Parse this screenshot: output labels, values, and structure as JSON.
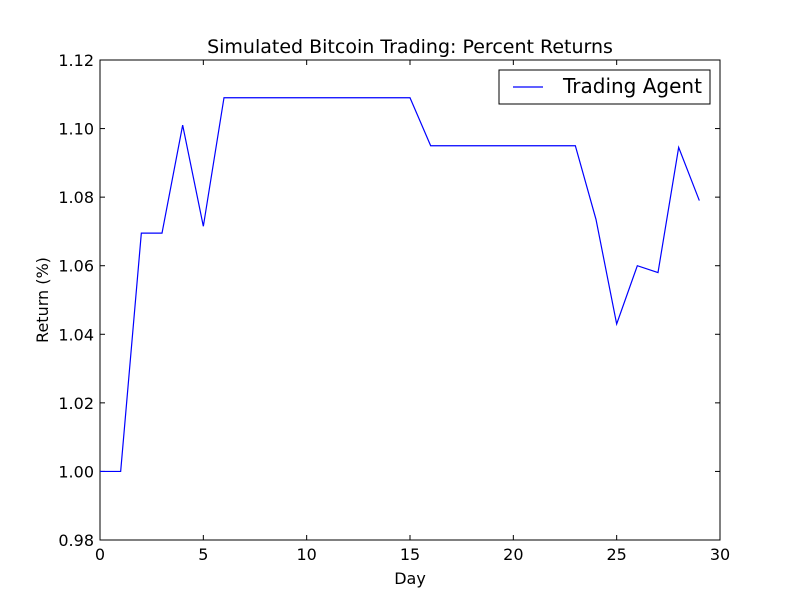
{
  "chart_data": {
    "type": "line",
    "title": "Simulated Bitcoin Trading: Percent Returns",
    "xlabel": "Day",
    "ylabel": "Return (%)",
    "xlim": [
      0,
      30
    ],
    "ylim": [
      0.98,
      1.12
    ],
    "xticks": [
      "0",
      "5",
      "10",
      "15",
      "20",
      "25",
      "30"
    ],
    "yticks": [
      "0.98",
      "1.00",
      "1.02",
      "1.04",
      "1.06",
      "1.08",
      "1.10",
      "1.12"
    ],
    "grid": false,
    "legend_position": "top-right",
    "series": [
      {
        "name": "Trading Agent",
        "color": "#0000ff",
        "x": [
          0,
          1,
          2,
          3,
          4,
          5,
          6,
          7,
          8,
          9,
          10,
          11,
          12,
          13,
          14,
          15,
          16,
          17,
          18,
          19,
          20,
          21,
          22,
          23,
          24,
          25,
          26,
          27,
          28,
          29
        ],
        "y": [
          1.0,
          1.0,
          1.0695,
          1.0695,
          1.101,
          1.0715,
          1.109,
          1.109,
          1.109,
          1.109,
          1.109,
          1.109,
          1.109,
          1.109,
          1.109,
          1.109,
          1.095,
          1.095,
          1.095,
          1.095,
          1.095,
          1.095,
          1.095,
          1.095,
          1.0735,
          1.043,
          1.06,
          1.058,
          1.0945,
          1.079
        ]
      }
    ]
  }
}
